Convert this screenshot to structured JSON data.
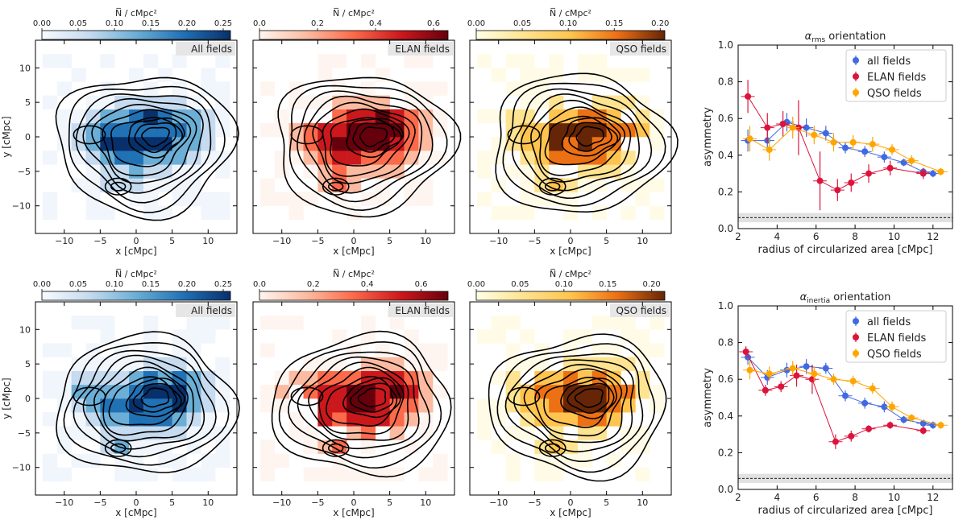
{
  "colorbar_label": "N̅ / cMpc²",
  "map_xlabel": "x [cMpc]",
  "map_ylabel": "y [cMpc]",
  "map_ticks": [
    "−10",
    "−5",
    "0",
    "5",
    "10"
  ],
  "map_ticks_y": [
    "10",
    "5",
    "0",
    "−5",
    "−10"
  ],
  "colors": {
    "all": "#4169e1",
    "elan": "#dc143c",
    "qso": "#ffa500",
    "blues": [
      "#f1f6fd",
      "#c6dbef",
      "#6baed6",
      "#2171b5",
      "#08306b"
    ],
    "reds": [
      "#fff5f0",
      "#fcbba1",
      "#fb6a4a",
      "#cb181d",
      "#67000d"
    ],
    "oranges": [
      "#fffbe6",
      "#fee391",
      "#fec44f",
      "#ec7014",
      "#662506"
    ]
  },
  "maps": [
    {
      "label": "All fields",
      "cmap": "blues",
      "cbar_ticks": [
        "0.00",
        "0.05",
        "0.10",
        "0.15",
        "0.20",
        "0.25"
      ],
      "vmax": 0.26
    },
    {
      "label": "ELAN fields",
      "cmap": "reds",
      "cbar_ticks": [
        "0.0",
        "0.2",
        "0.4",
        "0.6"
      ],
      "vmax": 0.65
    },
    {
      "label": "QSO fields",
      "cmap": "oranges",
      "cbar_ticks": [
        "0.00",
        "0.05",
        "0.10",
        "0.15",
        "0.20"
      ],
      "vmax": 0.205
    },
    {
      "label": "All fields",
      "cmap": "blues",
      "cbar_ticks": [
        "0.00",
        "0.05",
        "0.10",
        "0.15",
        "0.20",
        "0.25"
      ],
      "vmax": 0.26
    },
    {
      "label": "ELAN fields",
      "cmap": "reds",
      "cbar_ticks": [
        "0.0",
        "0.2",
        "0.4",
        "0.6"
      ],
      "vmax": 0.7
    },
    {
      "label": "QSO fields",
      "cmap": "oranges",
      "cbar_ticks": [
        "0.00",
        "0.05",
        "0.10",
        "0.15",
        "0.20"
      ],
      "vmax": 0.215
    }
  ],
  "chart_data": [
    {
      "type": "scatter",
      "title": "α_rms orientation",
      "title_main": "α",
      "title_sub": "rms",
      "title_rest": " orientation",
      "xlabel": "radius of circularized area [cMpc]",
      "ylabel": "asymmetry",
      "xlim": [
        2,
        13
      ],
      "ylim": [
        0,
        1.0
      ],
      "xticks": [
        "2",
        "4",
        "6",
        "8",
        "10",
        "12"
      ],
      "yticks": [
        "0.0",
        "0.2",
        "0.4",
        "0.6",
        "0.8",
        "1.0"
      ],
      "baseline": 0.06,
      "legend": "top-right",
      "series": [
        {
          "name": "all fields",
          "color_key": "all",
          "x": [
            2.5,
            3.5,
            4.5,
            5.5,
            6.5,
            7.5,
            8.5,
            9.5,
            10.5,
            11.5,
            12.0
          ],
          "y": [
            0.48,
            0.48,
            0.58,
            0.55,
            0.52,
            0.44,
            0.42,
            0.39,
            0.36,
            0.31,
            0.3
          ],
          "err": [
            0.06,
            0.06,
            0.05,
            0.05,
            0.04,
            0.03,
            0.03,
            0.03,
            0.02,
            0.02,
            0.02
          ]
        },
        {
          "name": "ELAN fields",
          "color_key": "elan",
          "x": [
            2.5,
            3.5,
            4.3,
            5.1,
            6.2,
            7.1,
            7.8,
            8.7,
            9.8,
            11.5
          ],
          "y": [
            0.72,
            0.55,
            0.57,
            0.55,
            0.26,
            0.21,
            0.25,
            0.3,
            0.33,
            0.3
          ],
          "err": [
            0.09,
            0.08,
            0.07,
            0.15,
            0.16,
            0.06,
            0.05,
            0.05,
            0.04,
            0.03
          ]
        },
        {
          "name": "QSO fields",
          "color_key": "qso",
          "x": [
            2.6,
            3.6,
            4.8,
            5.9,
            6.9,
            7.9,
            8.9,
            9.9,
            10.9,
            12.4
          ],
          "y": [
            0.49,
            0.43,
            0.55,
            0.51,
            0.47,
            0.47,
            0.46,
            0.43,
            0.37,
            0.31
          ],
          "err": [
            0.07,
            0.06,
            0.06,
            0.05,
            0.05,
            0.04,
            0.04,
            0.03,
            0.03,
            0.02
          ]
        }
      ]
    },
    {
      "type": "scatter",
      "title": "α_inertia orientation",
      "title_main": "α",
      "title_sub": "inertia",
      "title_rest": " orientation",
      "xlabel": "radius of circularized area [cMpc]",
      "ylabel": "asymmetry",
      "xlim": [
        2,
        13
      ],
      "ylim": [
        0,
        1.0
      ],
      "xticks": [
        "2",
        "4",
        "6",
        "8",
        "10",
        "12"
      ],
      "yticks": [
        "0.0",
        "0.2",
        "0.4",
        "0.6",
        "0.8",
        "1.0"
      ],
      "baseline": 0.06,
      "legend": "top-right",
      "series": [
        {
          "name": "all fields",
          "color_key": "all",
          "x": [
            2.5,
            3.5,
            4.5,
            5.5,
            6.5,
            7.5,
            8.5,
            9.5,
            10.5,
            11.5,
            12.0
          ],
          "y": [
            0.72,
            0.61,
            0.65,
            0.67,
            0.66,
            0.51,
            0.47,
            0.45,
            0.38,
            0.36,
            0.35
          ],
          "err": [
            0.04,
            0.04,
            0.04,
            0.04,
            0.03,
            0.03,
            0.03,
            0.03,
            0.02,
            0.02,
            0.02
          ]
        },
        {
          "name": "ELAN fields",
          "color_key": "elan",
          "x": [
            2.4,
            3.4,
            4.2,
            5.0,
            5.8,
            7.0,
            7.8,
            8.7,
            9.8,
            11.5
          ],
          "y": [
            0.75,
            0.54,
            0.56,
            0.62,
            0.6,
            0.26,
            0.29,
            0.33,
            0.35,
            0.32
          ],
          "err": [
            0.03,
            0.03,
            0.03,
            0.06,
            0.08,
            0.04,
            0.03,
            0.02,
            0.02,
            0.02
          ]
        },
        {
          "name": "QSO fields",
          "color_key": "qso",
          "x": [
            2.6,
            3.6,
            4.8,
            5.9,
            6.9,
            7.9,
            8.9,
            9.9,
            10.9,
            12.4
          ],
          "y": [
            0.65,
            0.63,
            0.66,
            0.63,
            0.6,
            0.59,
            0.55,
            0.45,
            0.39,
            0.35
          ],
          "err": [
            0.05,
            0.04,
            0.04,
            0.04,
            0.03,
            0.03,
            0.03,
            0.03,
            0.02,
            0.02
          ]
        }
      ]
    }
  ]
}
